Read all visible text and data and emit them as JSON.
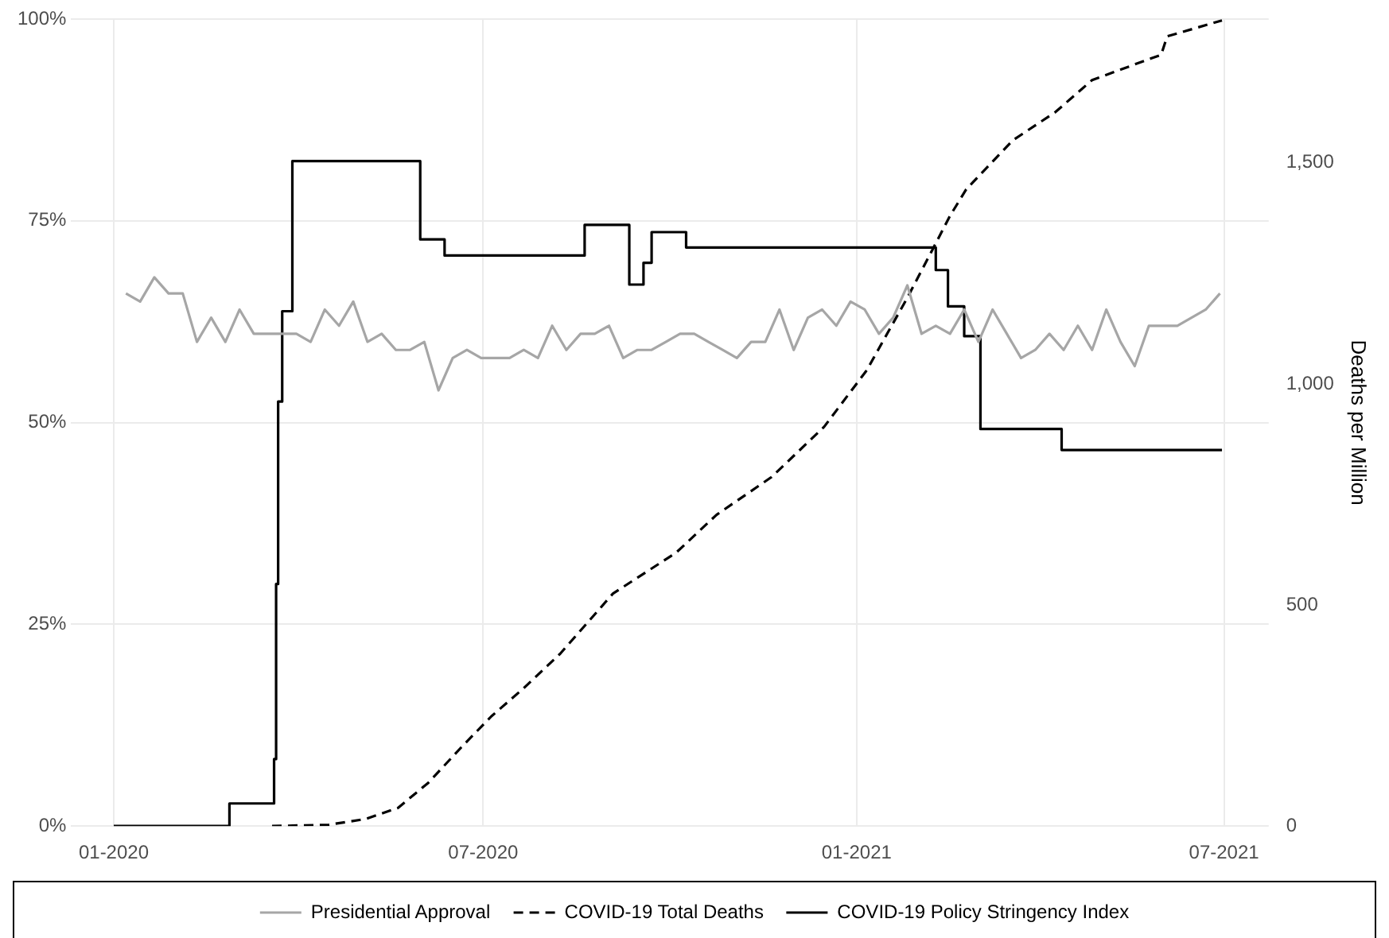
{
  "chart_data": {
    "type": "line",
    "y2label": "Deaths per Million",
    "xlim": [
      "2019-12-11",
      "2021-07-23"
    ],
    "xticks": [
      {
        "value": "2020-01",
        "label": "01-2020"
      },
      {
        "value": "2020-07",
        "label": "07-2020"
      },
      {
        "value": "2021-01",
        "label": "01-2021"
      },
      {
        "value": "2021-07",
        "label": "07-2021"
      }
    ],
    "ylim": [
      0,
      100
    ],
    "yticks": [
      {
        "value": 0,
        "label": "0%"
      },
      {
        "value": 25,
        "label": "25%"
      },
      {
        "value": 50,
        "label": "50%"
      },
      {
        "value": 75,
        "label": "75%"
      },
      {
        "value": 100,
        "label": "100%"
      }
    ],
    "y2lim": [
      0,
      1825
    ],
    "y2ticks": [
      0,
      500,
      {
        "value": 1000,
        "label": "1,000"
      },
      {
        "value": 1500,
        "label": "1,500"
      }
    ],
    "grid": true,
    "legend": "bottom",
    "marker": "none",
    "series": [
      {
        "name": "Presidential Approval",
        "type": "line",
        "color": "#a6a6a6",
        "line_style": "solid",
        "x": [
          "2020-01-07",
          "2020-01-14",
          "2020-01-21",
          "2020-01-28",
          "2020-02-04",
          "2020-02-11",
          "2020-02-18",
          "2020-02-25",
          "2020-03-03",
          "2020-03-10",
          "2020-03-17",
          "2020-03-24",
          "2020-03-31",
          "2020-04-07",
          "2020-04-14",
          "2020-04-21",
          "2020-04-28",
          "2020-05-05",
          "2020-05-12",
          "2020-05-19",
          "2020-05-26",
          "2020-06-02",
          "2020-06-09",
          "2020-06-16",
          "2020-06-23",
          "2020-06-30",
          "2020-07-07",
          "2020-07-14",
          "2020-07-21",
          "2020-07-28",
          "2020-08-04",
          "2020-08-11",
          "2020-08-18",
          "2020-08-25",
          "2020-09-01",
          "2020-09-08",
          "2020-09-15",
          "2020-09-22",
          "2020-09-29",
          "2020-10-06",
          "2020-10-13",
          "2020-10-20",
          "2020-10-27",
          "2020-11-03",
          "2020-11-10",
          "2020-11-17",
          "2020-11-24",
          "2020-12-01",
          "2020-12-08",
          "2020-12-15",
          "2020-12-22",
          "2020-12-29",
          "2021-01-05",
          "2021-01-12",
          "2021-01-19",
          "2021-01-26",
          "2021-02-02",
          "2021-02-09",
          "2021-02-16",
          "2021-02-23",
          "2021-03-02",
          "2021-03-09",
          "2021-03-16",
          "2021-03-23",
          "2021-03-30",
          "2021-04-06",
          "2021-04-13",
          "2021-04-20",
          "2021-04-27",
          "2021-05-04",
          "2021-05-11",
          "2021-05-18",
          "2021-05-25",
          "2021-06-01",
          "2021-06-08",
          "2021-06-15",
          "2021-06-22",
          "2021-06-29"
        ],
        "values": [
          66,
          65,
          68,
          66,
          66,
          60,
          63,
          60,
          64,
          61,
          61,
          61,
          61,
          60,
          64,
          62,
          65,
          60,
          61,
          59,
          59,
          60,
          54,
          58,
          59,
          58,
          58,
          58,
          59,
          58,
          62,
          59,
          61,
          61,
          62,
          58,
          59,
          59,
          60,
          61,
          61,
          60,
          59,
          58,
          60,
          60,
          64,
          59,
          63,
          64,
          62,
          65,
          64,
          61,
          63,
          67,
          61,
          62,
          61,
          64,
          60,
          64,
          61,
          58,
          59,
          61,
          59,
          62,
          59,
          64,
          60,
          57,
          62,
          62,
          62,
          63,
          64,
          66
        ]
      },
      {
        "name": "COVID-19 Total Deaths",
        "type": "line",
        "axis": "y2",
        "color": "#000000",
        "line_style": "dashed",
        "x": [
          "2020-03-19",
          "2020-04-16",
          "2020-05-04",
          "2020-05-20",
          "2020-06-04",
          "2020-06-20",
          "2020-07-05",
          "2020-07-21",
          "2020-08-08",
          "2020-09-03",
          "2020-10-04",
          "2020-10-24",
          "2020-11-20",
          "2020-12-16",
          "2021-01-06",
          "2021-01-26",
          "2021-02-08",
          "2021-02-16",
          "2021-02-24",
          "2021-03-19",
          "2021-04-09",
          "2021-04-27",
          "2021-05-26",
          "2021-05-31",
          "2021-06-03",
          "2021-06-30"
        ],
        "values": [
          0,
          3,
          16,
          41,
          98,
          177,
          248,
          312,
          390,
          526,
          618,
          704,
          789,
          903,
          1031,
          1195,
          1309,
          1380,
          1440,
          1551,
          1615,
          1687,
          1736,
          1744,
          1786,
          1822
        ]
      },
      {
        "name": "COVID-19 Policy Stringency Index",
        "type": "step",
        "color": "#000000",
        "line_style": "solid",
        "x": [
          "2020-01-01",
          "2020-02-27",
          "2020-03-20",
          "2020-03-21",
          "2020-03-22",
          "2020-03-24",
          "2020-03-29",
          "2020-05-31",
          "2020-06-12",
          "2020-08-20",
          "2020-09-11",
          "2020-09-18",
          "2020-09-22",
          "2020-10-09",
          "2021-02-09",
          "2021-02-15",
          "2021-02-23",
          "2021-03-03",
          "2021-04-12",
          "2021-06-30"
        ],
        "values": [
          0,
          2.8,
          8.3,
          30,
          52.6,
          63.8,
          82.4,
          72.7,
          70.7,
          74.5,
          67.1,
          69.8,
          73.6,
          71.7,
          68.9,
          64.4,
          60.7,
          49.2,
          46.6,
          46.6
        ]
      }
    ]
  }
}
